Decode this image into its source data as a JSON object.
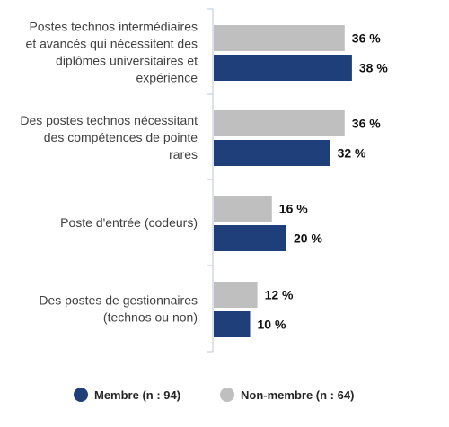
{
  "chart_data": {
    "type": "bar",
    "orientation": "horizontal",
    "categories": [
      "Postes technos intermédiaires et avancés qui nécessitent des diplômes universitaires et expérience",
      "Des postes technos nécessitant des compétences de pointe rares",
      "Poste d'entrée (codeurs)",
      "Des postes de gestionnaires (technos ou non)"
    ],
    "category_lines": [
      [
        "Postes technos intermédiaires",
        "et avancés qui nécessitent des",
        "diplômes universitaires et",
        "expérience"
      ],
      [
        "Des postes technos nécessitant",
        "des compétences de pointe",
        "rares"
      ],
      [
        "Poste d'entrée (codeurs)"
      ],
      [
        "Des postes de gestionnaires",
        "(technos ou non)"
      ]
    ],
    "series": [
      {
        "name": "Non-membre (n : 64)",
        "color": "#bfbfbf",
        "values": [
          36,
          36,
          16,
          12
        ],
        "labels": [
          "36 %",
          "36 %",
          "16 %",
          "12 %"
        ]
      },
      {
        "name": "Membre (n : 94)",
        "color": "#1f3f7a",
        "values": [
          38,
          32,
          20,
          10
        ],
        "labels": [
          "38 %",
          "32 %",
          "20 %",
          "10 %"
        ]
      }
    ],
    "legend": {
      "placement": "bottom",
      "items": [
        {
          "label": "Membre (n : 94)",
          "color": "#1f3f7a"
        },
        {
          "label": "Non-membre (n : 64)",
          "color": "#bfbfbf"
        }
      ]
    },
    "xlim": [
      0,
      40
    ],
    "grid": false,
    "axis_color": "#b8c7dd"
  }
}
